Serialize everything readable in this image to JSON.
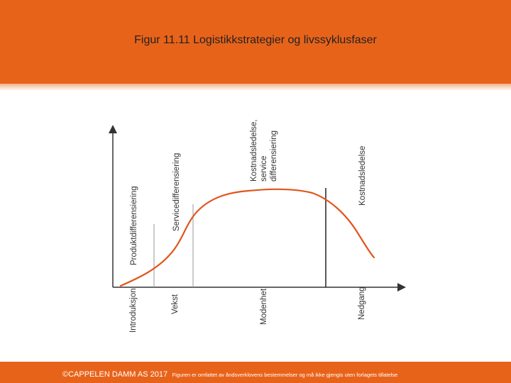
{
  "title": "Figur 11.11  Logistikkstrategier og livssyklusfaser",
  "diagram": {
    "phases": [
      "Introduksjon",
      "Vekst",
      "Modenhet",
      "Nedgang"
    ],
    "strategies": {
      "introduksjon": "Produktdifferensiering",
      "vekst": "Servicedifferensiering",
      "modenhet_1": "Kostnadsledelse,",
      "modenhet_2": "service",
      "modenhet_3": "differensiering",
      "nedgang": "Kostnadsledelse"
    }
  },
  "footer": {
    "copyright": "©CAPPELEN DAMM AS 2017",
    "note": "Figuren er omfattet av åndsverklovens bestemmelser og må ikke gjengis uten forlagets tillatelse"
  },
  "colors": {
    "brand_orange": "#e8631a",
    "curve": "#e0561d",
    "axis": "#333333"
  }
}
